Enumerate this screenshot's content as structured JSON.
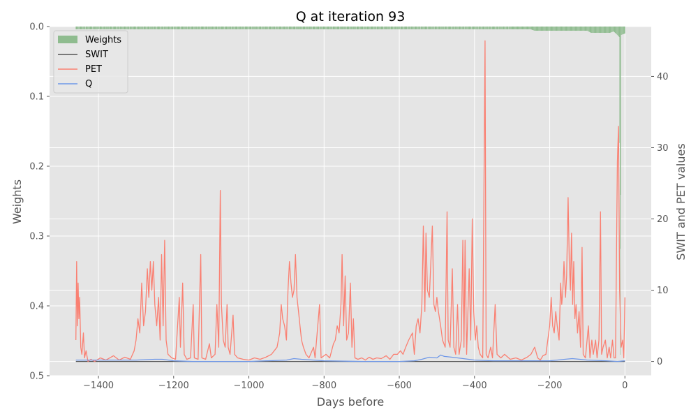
{
  "chart_data": {
    "type": "line",
    "title": "Q at iteration 93",
    "xlabel": "Days before",
    "ylabel_left": "Weights",
    "ylabel_right": "SWIT and PET values",
    "xlim": [
      -1530,
      70
    ],
    "ylim_left": [
      0.5,
      0.0
    ],
    "ylim_left_inverted": true,
    "ylim_right": [
      -2,
      47
    ],
    "x_ticks": [
      "−1400",
      "−1200",
      "−1000",
      "−800",
      "−600",
      "−400",
      "−200",
      "0"
    ],
    "x_tick_values": [
      -1400,
      -1200,
      -1000,
      -800,
      -600,
      -400,
      -200,
      0
    ],
    "y_left_ticks": [
      "0.0",
      "0.1",
      "0.2",
      "0.3",
      "0.4",
      "0.5"
    ],
    "y_left_tick_values": [
      0.0,
      0.1,
      0.2,
      0.3,
      0.4,
      0.5
    ],
    "y_right_ticks": [
      "0",
      "10",
      "20",
      "30",
      "40"
    ],
    "y_right_tick_values": [
      0,
      10,
      20,
      30,
      40
    ],
    "grid": true,
    "legend_position": "top-left",
    "legend": [
      "Weights",
      "SWIT",
      "PET",
      "Q"
    ],
    "series": [
      {
        "name": "Weights",
        "kind": "bar",
        "axis": "left",
        "color": "#8fbc8f",
        "x_range": [
          -1460,
          0
        ],
        "baseline_weight": 0.004,
        "points": [
          [
            -1460,
            0.004
          ],
          [
            -250,
            0.004
          ],
          [
            -240,
            0.006
          ],
          [
            -100,
            0.006
          ],
          [
            -90,
            0.009
          ],
          [
            -40,
            0.009
          ],
          [
            -30,
            0.007
          ],
          [
            -20,
            0.012
          ],
          [
            -15,
            0.015
          ],
          [
            -12,
            0.47
          ],
          [
            -10,
            0.012
          ],
          [
            0,
            0.01
          ]
        ]
      },
      {
        "name": "SWIT",
        "kind": "line",
        "axis": "right",
        "color": "#555555",
        "points": [
          [
            -1460,
            0
          ],
          [
            0,
            0
          ]
        ]
      },
      {
        "name": "PET",
        "kind": "line",
        "axis": "right",
        "color": "#fa8072",
        "points": [
          [
            -1460,
            3
          ],
          [
            -1458,
            14
          ],
          [
            -1456,
            5
          ],
          [
            -1454,
            11
          ],
          [
            -1452,
            6
          ],
          [
            -1450,
            9
          ],
          [
            -1447,
            2
          ],
          [
            -1444,
            1
          ],
          [
            -1440,
            4
          ],
          [
            -1437,
            0.5
          ],
          [
            -1433,
            1.5
          ],
          [
            -1428,
            0
          ],
          [
            -1420,
            0.3
          ],
          [
            -1410,
            0
          ],
          [
            -1395,
            0.5
          ],
          [
            -1380,
            0.2
          ],
          [
            -1360,
            0.8
          ],
          [
            -1345,
            0.2
          ],
          [
            -1330,
            0.6
          ],
          [
            -1315,
            0.3
          ],
          [
            -1305,
            1.5
          ],
          [
            -1300,
            3
          ],
          [
            -1295,
            6
          ],
          [
            -1290,
            4
          ],
          [
            -1285,
            11
          ],
          [
            -1280,
            5
          ],
          [
            -1275,
            7
          ],
          [
            -1270,
            13
          ],
          [
            -1266,
            9
          ],
          [
            -1262,
            14
          ],
          [
            -1258,
            10
          ],
          [
            -1254,
            14
          ],
          [
            -1250,
            8
          ],
          [
            -1245,
            5
          ],
          [
            -1240,
            9
          ],
          [
            -1236,
            3
          ],
          [
            -1232,
            15
          ],
          [
            -1228,
            5
          ],
          [
            -1224,
            17
          ],
          [
            -1220,
            3
          ],
          [
            -1215,
            1
          ],
          [
            -1205,
            0.5
          ],
          [
            -1195,
            0.3
          ],
          [
            -1185,
            9
          ],
          [
            -1182,
            2
          ],
          [
            -1176,
            11
          ],
          [
            -1172,
            1
          ],
          [
            -1165,
            0.3
          ],
          [
            -1155,
            0.5
          ],
          [
            -1148,
            8
          ],
          [
            -1145,
            0.5
          ],
          [
            -1135,
            0.3
          ],
          [
            -1128,
            15
          ],
          [
            -1125,
            0.5
          ],
          [
            -1115,
            0.3
          ],
          [
            -1105,
            2.5
          ],
          [
            -1100,
            0.5
          ],
          [
            -1090,
            1
          ],
          [
            -1085,
            8
          ],
          [
            -1080,
            2
          ],
          [
            -1076,
            24
          ],
          [
            -1073,
            8
          ],
          [
            -1068,
            3
          ],
          [
            -1063,
            2
          ],
          [
            -1058,
            8
          ],
          [
            -1055,
            2
          ],
          [
            -1050,
            1
          ],
          [
            -1042,
            6.5
          ],
          [
            -1038,
            1
          ],
          [
            -1030,
            0.5
          ],
          [
            -1015,
            0.3
          ],
          [
            -1000,
            0.2
          ],
          [
            -985,
            0.5
          ],
          [
            -970,
            0.3
          ],
          [
            -955,
            0.6
          ],
          [
            -940,
            1
          ],
          [
            -925,
            2
          ],
          [
            -918,
            4
          ],
          [
            -914,
            8
          ],
          [
            -910,
            6
          ],
          [
            -905,
            5
          ],
          [
            -900,
            3
          ],
          [
            -896,
            10
          ],
          [
            -892,
            14
          ],
          [
            -888,
            11
          ],
          [
            -884,
            9
          ],
          [
            -880,
            10
          ],
          [
            -876,
            15
          ],
          [
            -872,
            9
          ],
          [
            -868,
            7
          ],
          [
            -864,
            5
          ],
          [
            -860,
            3
          ],
          [
            -855,
            2
          ],
          [
            -848,
            1
          ],
          [
            -840,
            0.5
          ],
          [
            -828,
            2
          ],
          [
            -824,
            0.5
          ],
          [
            -812,
            8
          ],
          [
            -808,
            0.5
          ],
          [
            -795,
            1
          ],
          [
            -785,
            0.5
          ],
          [
            -775,
            2.5
          ],
          [
            -770,
            3
          ],
          [
            -765,
            5
          ],
          [
            -760,
            4
          ],
          [
            -755,
            8
          ],
          [
            -752,
            15
          ],
          [
            -748,
            5
          ],
          [
            -744,
            12
          ],
          [
            -740,
            3
          ],
          [
            -735,
            4
          ],
          [
            -730,
            11
          ],
          [
            -726,
            2
          ],
          [
            -722,
            6
          ],
          [
            -718,
            0.5
          ],
          [
            -710,
            0.3
          ],
          [
            -700,
            0.5
          ],
          [
            -690,
            0.2
          ],
          [
            -680,
            0.6
          ],
          [
            -670,
            0.3
          ],
          [
            -660,
            0.5
          ],
          [
            -648,
            0.4
          ],
          [
            -635,
            0.8
          ],
          [
            -625,
            0.3
          ],
          [
            -615,
            1
          ],
          [
            -605,
            1
          ],
          [
            -597,
            1.5
          ],
          [
            -590,
            1
          ],
          [
            -583,
            2
          ],
          [
            -575,
            3
          ],
          [
            -565,
            4
          ],
          [
            -560,
            1
          ],
          [
            -555,
            5
          ],
          [
            -550,
            6
          ],
          [
            -545,
            4
          ],
          [
            -540,
            8
          ],
          [
            -536,
            19
          ],
          [
            -532,
            7
          ],
          [
            -529,
            18
          ],
          [
            -525,
            10
          ],
          [
            -520,
            9
          ],
          [
            -516,
            14
          ],
          [
            -512,
            19
          ],
          [
            -508,
            8
          ],
          [
            -504,
            7
          ],
          [
            -500,
            9
          ],
          [
            -496,
            7
          ],
          [
            -490,
            5
          ],
          [
            -485,
            3
          ],
          [
            -478,
            2
          ],
          [
            -473,
            21
          ],
          [
            -470,
            3
          ],
          [
            -465,
            2
          ],
          [
            -459,
            13
          ],
          [
            -455,
            2
          ],
          [
            -450,
            1
          ],
          [
            -445,
            8
          ],
          [
            -441,
            1
          ],
          [
            -435,
            3
          ],
          [
            -431,
            17
          ],
          [
            -428,
            2
          ],
          [
            -425,
            17
          ],
          [
            -421,
            1
          ],
          [
            -418,
            6
          ],
          [
            -414,
            13
          ],
          [
            -410,
            3
          ],
          [
            -406,
            20
          ],
          [
            -402,
            7
          ],
          [
            -398,
            3
          ],
          [
            -394,
            5
          ],
          [
            -390,
            2
          ],
          [
            -385,
            1
          ],
          [
            -378,
            0.5
          ],
          [
            -372,
            45
          ],
          [
            -369,
            1
          ],
          [
            -364,
            0.5
          ],
          [
            -357,
            2
          ],
          [
            -352,
            0.5
          ],
          [
            -345,
            8
          ],
          [
            -340,
            1
          ],
          [
            -330,
            0.5
          ],
          [
            -320,
            1
          ],
          [
            -305,
            0.3
          ],
          [
            -290,
            0.5
          ],
          [
            -275,
            0.2
          ],
          [
            -260,
            0.6
          ],
          [
            -250,
            1
          ],
          [
            -240,
            2
          ],
          [
            -232,
            0.5
          ],
          [
            -225,
            0.2
          ],
          [
            -218,
            0.8
          ],
          [
            -210,
            1
          ],
          [
            -205,
            3
          ],
          [
            -200,
            5
          ],
          [
            -196,
            9
          ],
          [
            -192,
            5
          ],
          [
            -188,
            4
          ],
          [
            -184,
            7
          ],
          [
            -180,
            5
          ],
          [
            -175,
            3
          ],
          [
            -171,
            11
          ],
          [
            -168,
            8
          ],
          [
            -165,
            10
          ],
          [
            -162,
            14
          ],
          [
            -158,
            9
          ],
          [
            -155,
            12
          ],
          [
            -151,
            23
          ],
          [
            -148,
            14
          ],
          [
            -145,
            10
          ],
          [
            -142,
            18
          ],
          [
            -139,
            8
          ],
          [
            -136,
            14
          ],
          [
            -133,
            6
          ],
          [
            -130,
            8
          ],
          [
            -126,
            4
          ],
          [
            -122,
            7
          ],
          [
            -118,
            2
          ],
          [
            -114,
            16
          ],
          [
            -111,
            1
          ],
          [
            -105,
            0.5
          ],
          [
            -97,
            5
          ],
          [
            -93,
            0.5
          ],
          [
            -88,
            3
          ],
          [
            -84,
            1
          ],
          [
            -78,
            3
          ],
          [
            -74,
            0.5
          ],
          [
            -69,
            3
          ],
          [
            -65,
            21
          ],
          [
            -62,
            1
          ],
          [
            -58,
            2
          ],
          [
            -52,
            3
          ],
          [
            -47,
            0.5
          ],
          [
            -42,
            2
          ],
          [
            -38,
            0.5
          ],
          [
            -33,
            3
          ],
          [
            -29,
            0.5
          ],
          [
            -25,
            0.5
          ],
          [
            -20,
            28
          ],
          [
            -17,
            33
          ],
          [
            -14,
            10
          ],
          [
            -10,
            2
          ],
          [
            -6,
            3
          ],
          [
            -3,
            0.5
          ],
          [
            0,
            9
          ]
        ]
      },
      {
        "name": "Q",
        "kind": "line",
        "axis": "right",
        "color": "#6f98e8",
        "points": [
          [
            -1460,
            0.2
          ],
          [
            -1400,
            0.2
          ],
          [
            -1350,
            0.2
          ],
          [
            -1300,
            0.2
          ],
          [
            -1250,
            0.3
          ],
          [
            -1230,
            0.3
          ],
          [
            -1200,
            0.1
          ],
          [
            -1150,
            0
          ],
          [
            -1100,
            0
          ],
          [
            -1050,
            0
          ],
          [
            -1000,
            0
          ],
          [
            -950,
            0.1
          ],
          [
            -900,
            0.2
          ],
          [
            -880,
            0.4
          ],
          [
            -860,
            0.3
          ],
          [
            -800,
            0.1
          ],
          [
            -700,
            0
          ],
          [
            -600,
            0
          ],
          [
            -560,
            0.1
          ],
          [
            -540,
            0.3
          ],
          [
            -520,
            0.6
          ],
          [
            -500,
            0.5
          ],
          [
            -490,
            0.9
          ],
          [
            -480,
            0.7
          ],
          [
            -460,
            0.6
          ],
          [
            -430,
            0.4
          ],
          [
            -400,
            0.2
          ],
          [
            -350,
            0.1
          ],
          [
            -300,
            0.1
          ],
          [
            -250,
            0.1
          ],
          [
            -200,
            0.1
          ],
          [
            -180,
            0.2
          ],
          [
            -160,
            0.3
          ],
          [
            -140,
            0.4
          ],
          [
            -120,
            0.3
          ],
          [
            -100,
            0.2
          ],
          [
            -50,
            0.1
          ],
          [
            -20,
            0
          ],
          [
            0,
            0.1
          ]
        ]
      }
    ]
  }
}
